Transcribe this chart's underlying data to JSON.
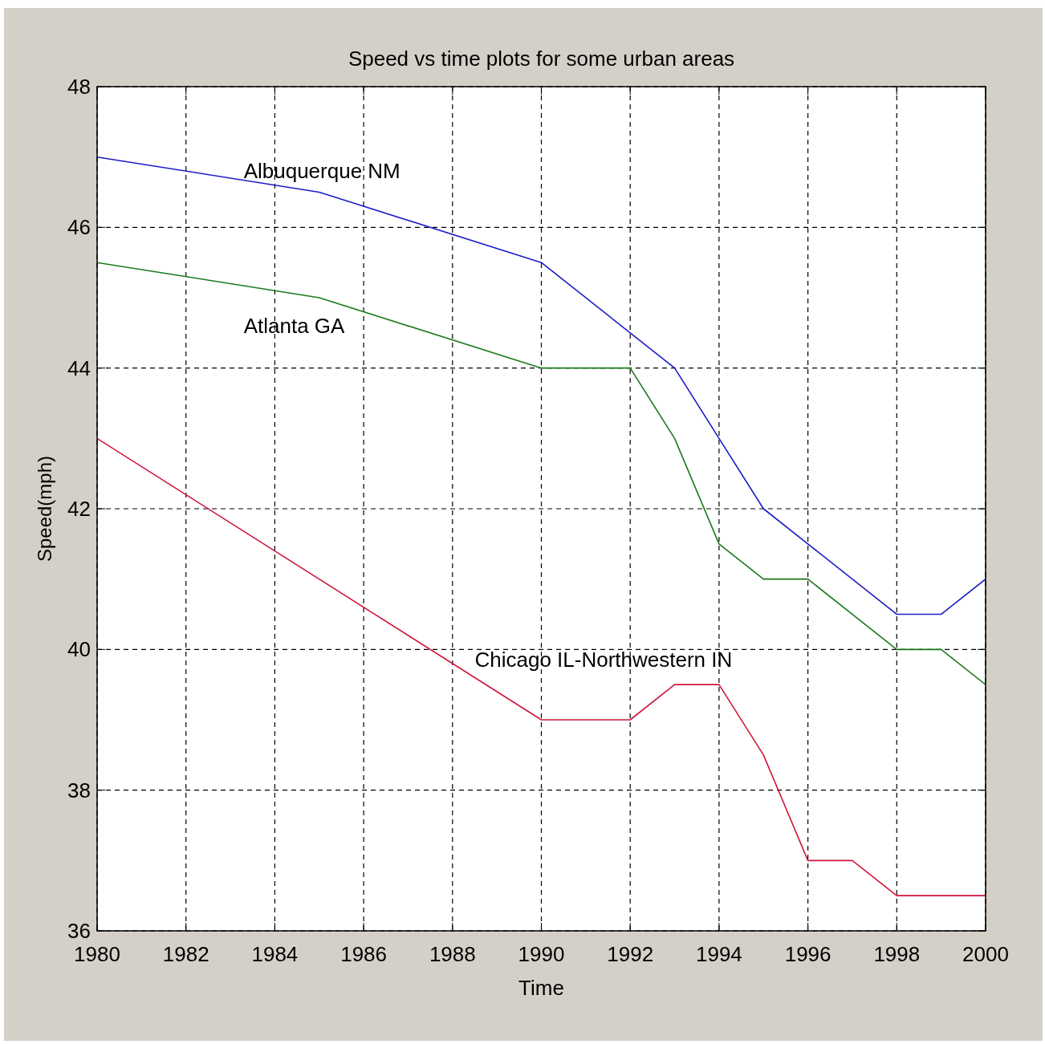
{
  "chart_data": {
    "type": "line",
    "title": "Speed vs time plots for some urban areas",
    "xlabel": "Time",
    "ylabel": "Speed(mph)",
    "xlim": [
      1980,
      2000
    ],
    "xticks": [
      1980,
      1982,
      1984,
      1986,
      1988,
      1990,
      1992,
      1994,
      1996,
      1998,
      2000
    ],
    "ylim": [
      36,
      48
    ],
    "yticks": [
      36,
      38,
      40,
      42,
      44,
      46,
      48
    ],
    "grid": true,
    "marker": "none",
    "line_style": "solid",
    "series": [
      {
        "name": "Albuquerque NM",
        "color": "#1c1cc8",
        "x": [
          1980,
          1985,
          1990,
          1992,
          1993,
          1994,
          1995,
          1996,
          1998,
          1999,
          2000
        ],
        "values": [
          47,
          46.5,
          45.5,
          44.5,
          44,
          43,
          42,
          41.5,
          40.5,
          40.5,
          41
        ]
      },
      {
        "name": "Atlanta GA",
        "color": "#1a7a1a",
        "x": [
          1980,
          1985,
          1990,
          1992,
          1993,
          1994,
          1995,
          1996,
          1998,
          1999,
          2000
        ],
        "values": [
          45.5,
          45,
          44,
          44,
          43,
          41.5,
          41,
          41,
          40,
          40,
          39.5
        ]
      },
      {
        "name": "Chicago IL-Northwestern IN",
        "color": "#d0163a",
        "x": [
          1980,
          1990,
          1992,
          1993,
          1994,
          1995,
          1996,
          1997,
          1998,
          2000
        ],
        "values": [
          43,
          39,
          39,
          39.5,
          39.5,
          38.5,
          37,
          37,
          36.5,
          36.5
        ]
      }
    ]
  }
}
